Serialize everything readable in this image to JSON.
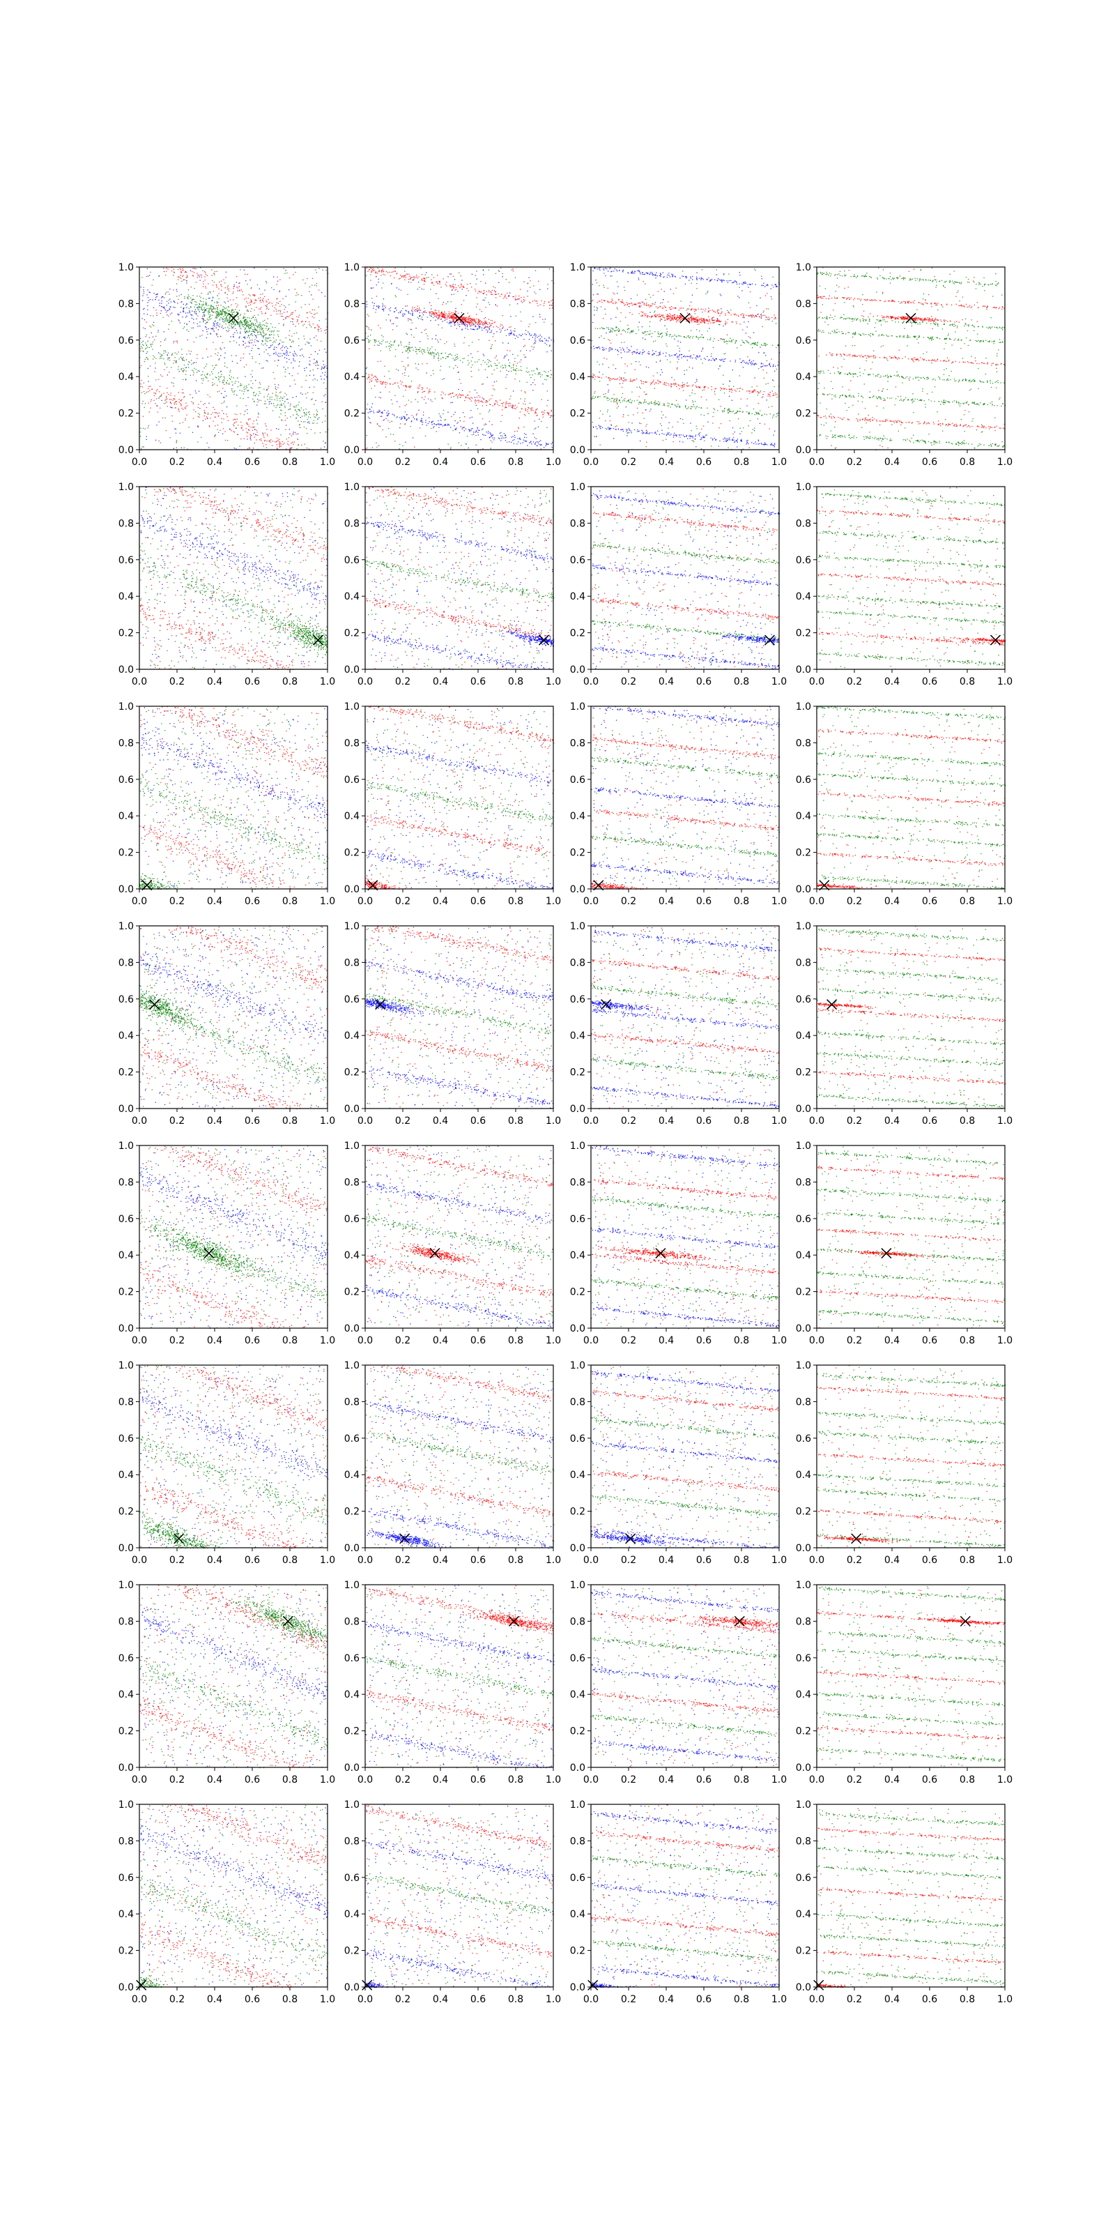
{
  "figure": {
    "rows": 8,
    "cols": 4,
    "colors": {
      "red": "#ff0000",
      "green": "#008000",
      "blue": "#0000ff",
      "frame": "#000000",
      "marker": "#000000"
    }
  },
  "chart_data": {
    "type": "scatter",
    "title": "",
    "xlabel": "",
    "ylabel": "",
    "xlim": [
      0,
      1
    ],
    "ylim": [
      0,
      1
    ],
    "grid": false,
    "legend": "none",
    "xticks": [
      "0.0",
      "0.2",
      "0.4",
      "0.6",
      "0.8",
      "1.0"
    ],
    "yticks": [
      "0.0",
      "0.2",
      "0.4",
      "0.6",
      "0.8",
      "1.0"
    ],
    "series_colors": [
      "red",
      "green",
      "blue"
    ],
    "query_marker": "×",
    "query_points": [
      [
        0.5,
        0.72
      ],
      [
        0.95,
        0.16
      ],
      [
        0.04,
        0.02
      ],
      [
        0.08,
        0.57
      ],
      [
        0.37,
        0.41
      ],
      [
        0.21,
        0.05
      ],
      [
        0.79,
        0.8
      ],
      [
        0.01,
        0.01
      ]
    ]
  }
}
